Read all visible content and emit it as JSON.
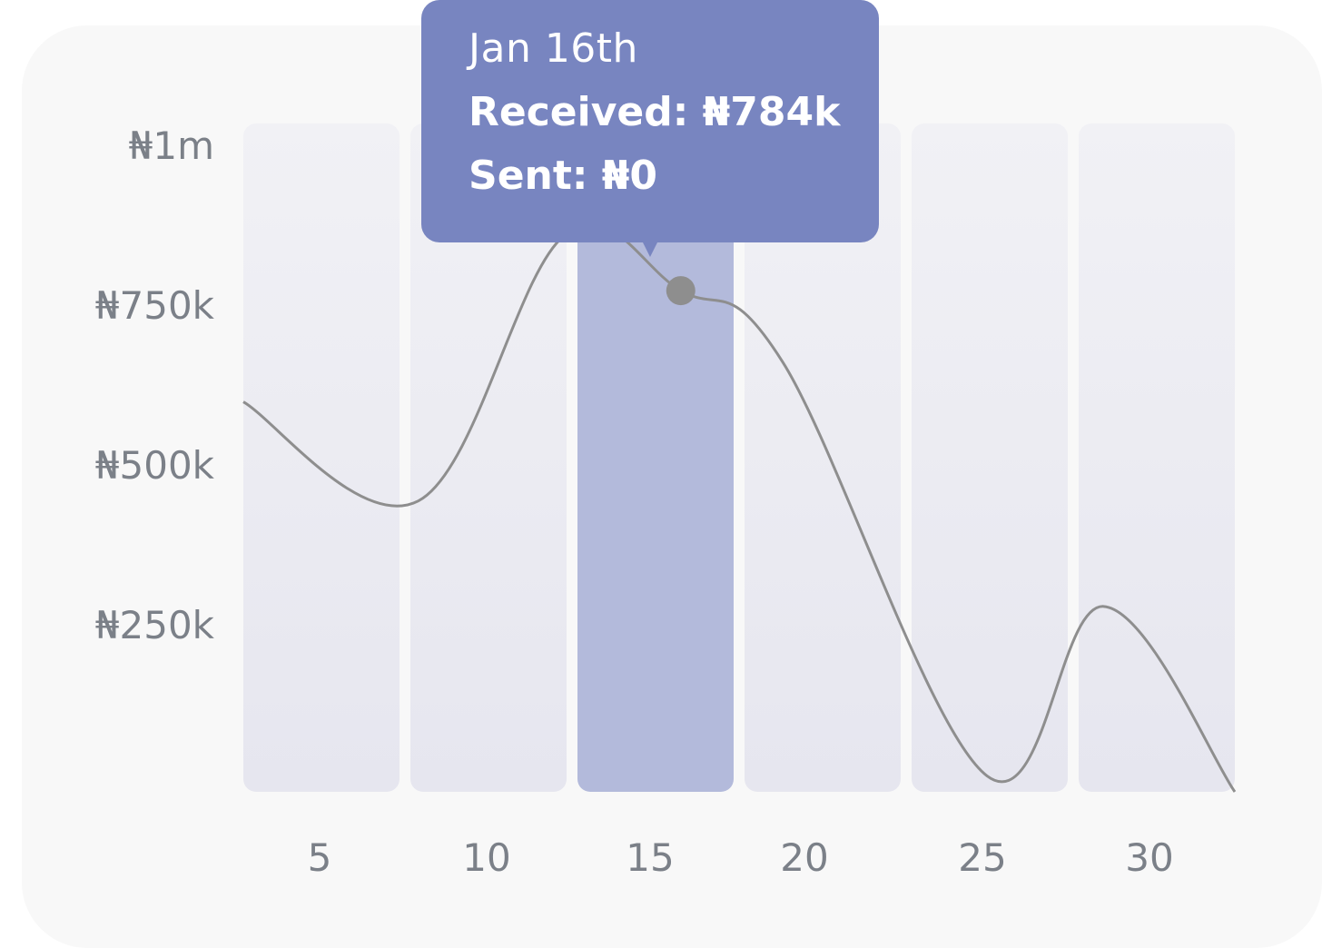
{
  "chart_data": {
    "type": "line",
    "x_ticks": [
      "5",
      "10",
      "15",
      "20",
      "25",
      "30"
    ],
    "y_ticks": [
      "₦1m",
      "₦750k",
      "₦500k",
      "₦250k"
    ],
    "ylim": [
      0,
      1000000
    ],
    "highlighted_column": "15",
    "series": [
      {
        "points": [
          {
            "x": 1,
            "y": 610000
          },
          {
            "x": 7,
            "y": 455000
          },
          {
            "x": 12,
            "y": 870000
          },
          {
            "x": 16,
            "y": 784000
          },
          {
            "x": 19.5,
            "y": 672000
          },
          {
            "x": 26.5,
            "y": 25000
          },
          {
            "x": 30.5,
            "y": 290000
          },
          {
            "x": 35,
            "y": 0
          }
        ],
        "color": "#8e8e8e"
      }
    ],
    "tooltip": {
      "date": "Jan 16th",
      "received": "Received: ₦784k",
      "sent": "Sent: ₦0"
    }
  },
  "colors": {
    "card_bg": "#f8f8f8",
    "column_bg": "#ebebf2",
    "column_highlight": "#b3badb",
    "tooltip_bg": "#7885c0",
    "line": "#8e8e8e",
    "tick_text": "#7b8088"
  }
}
